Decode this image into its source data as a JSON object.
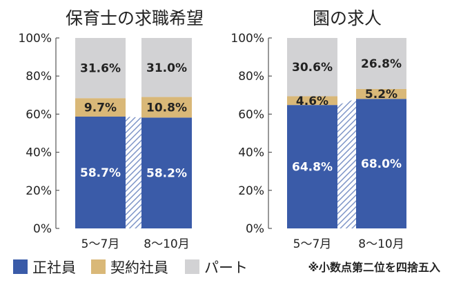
{
  "chart_data": [
    {
      "type": "bar",
      "stacked": true,
      "percent": true,
      "title": "保育士の求職希望",
      "categories": [
        "5〜7月",
        "8〜10月"
      ],
      "ylim": [
        0,
        100
      ],
      "yticks": [
        "0%",
        "20%",
        "40%",
        "60%",
        "80%",
        "100%"
      ],
      "series": [
        {
          "name": "正社員",
          "values": [
            58.7,
            58.2
          ],
          "labels": [
            "58.7%",
            "58.2%"
          ]
        },
        {
          "name": "契約社員",
          "values": [
            9.7,
            10.8
          ],
          "labels": [
            "9.7%",
            "10.8%"
          ]
        },
        {
          "name": "パート",
          "values": [
            31.6,
            31.0
          ],
          "labels": [
            "31.6%",
            "31.0%"
          ]
        }
      ]
    },
    {
      "type": "bar",
      "stacked": true,
      "percent": true,
      "title": "園の求人",
      "categories": [
        "5〜7月",
        "8〜10月"
      ],
      "ylim": [
        0,
        100
      ],
      "yticks": [
        "0%",
        "20%",
        "40%",
        "60%",
        "80%",
        "100%"
      ],
      "series": [
        {
          "name": "正社員",
          "values": [
            64.8,
            68.0
          ],
          "labels": [
            "64.8%",
            "68.0%"
          ]
        },
        {
          "name": "契約社員",
          "values": [
            4.6,
            5.2
          ],
          "labels": [
            "4.6%",
            "5.2%"
          ]
        },
        {
          "name": "パート",
          "values": [
            30.6,
            26.8
          ],
          "labels": [
            "30.6%",
            "26.8%"
          ]
        }
      ]
    }
  ],
  "legend": {
    "items": [
      {
        "label": "正社員",
        "color": "#3a5ba8"
      },
      {
        "label": "契約社員",
        "color": "#d9b878"
      },
      {
        "label": "パート",
        "color": "#d2d2d4"
      }
    ],
    "note": "※小数点第二位を四捨五入"
  },
  "colors": {
    "regular": "#3a5ba8",
    "contract": "#d9b878",
    "part": "#d2d2d4",
    "hatch": "#7f96c8",
    "regular_text": "#ffffff",
    "other_text": "#222222",
    "axis": "#555555"
  }
}
